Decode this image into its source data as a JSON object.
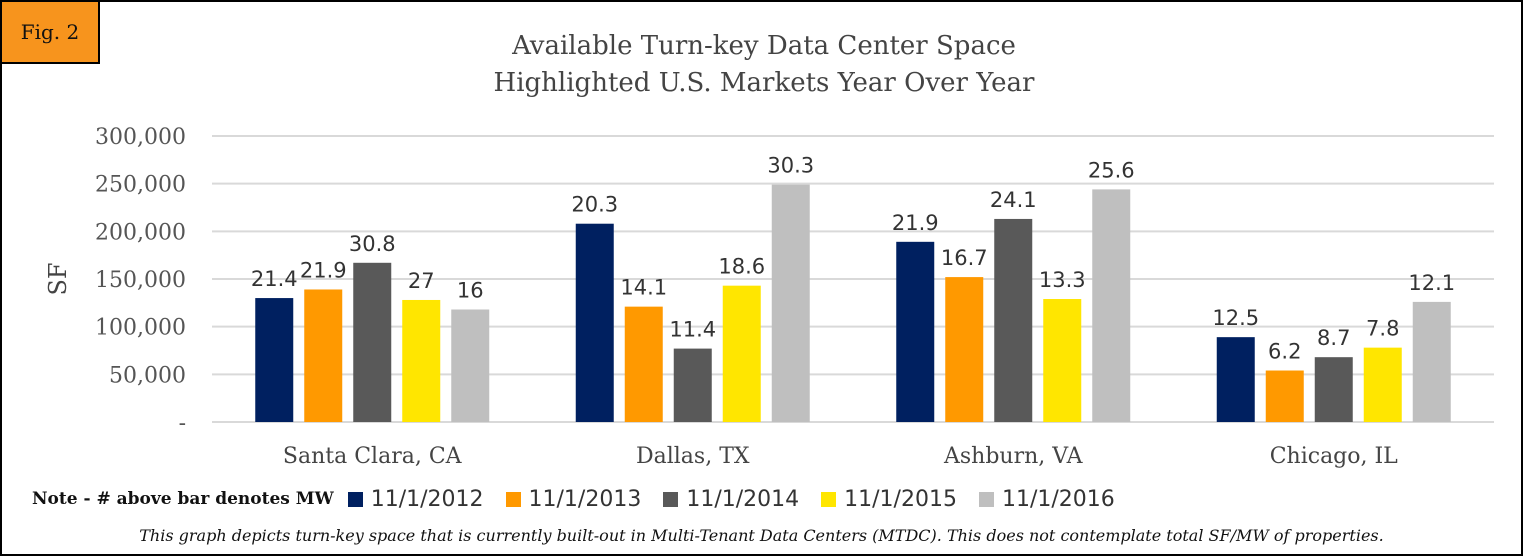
{
  "figure_label": "Fig. 2",
  "note": "Note - # above bar denotes MW",
  "footnote": "This graph depicts turn-key space that is currently built-out in Multi-Tenant Data Centers (MTDC). This does not contemplate total SF/MW of properties.",
  "chart_data": {
    "type": "bar",
    "title": "Available Turn-key Data Center Space",
    "subtitle": "Highlighted U.S. Markets Year Over Year",
    "ylabel": "SF",
    "xlabel": "",
    "ylim": [
      0,
      300000
    ],
    "yticks": [
      0,
      50000,
      100000,
      150000,
      200000,
      250000,
      300000
    ],
    "ytick_labels": [
      "-",
      "50,000",
      "100,000",
      "150,000",
      "200,000",
      "250,000",
      "300,000"
    ],
    "grid": true,
    "legend_position": "bottom",
    "categories": [
      "Santa Clara, CA",
      "Dallas, TX",
      "Ashburn, VA",
      "Chicago, IL"
    ],
    "series": [
      {
        "name": "11/1/2012",
        "color": "#002060",
        "values": [
          130000,
          208000,
          189000,
          89000
        ],
        "labels": [
          "21.4",
          "20.3",
          "21.9",
          "12.5"
        ]
      },
      {
        "name": "11/1/2013",
        "color": "#ff9900",
        "values": [
          139000,
          121000,
          152000,
          54000
        ],
        "labels": [
          "21.9",
          "14.1",
          "16.7",
          "6.2"
        ]
      },
      {
        "name": "11/1/2014",
        "color": "#595959",
        "values": [
          167000,
          77000,
          213000,
          68000
        ],
        "labels": [
          "30.8",
          "11.4",
          "24.1",
          "8.7"
        ]
      },
      {
        "name": "11/1/2015",
        "color": "#ffe600",
        "values": [
          128000,
          143000,
          129000,
          78000
        ],
        "labels": [
          "27",
          "18.6",
          "13.3",
          "7.8"
        ]
      },
      {
        "name": "11/1/2016",
        "color": "#bfbfbf",
        "values": [
          118000,
          249000,
          244000,
          126000
        ],
        "labels": [
          "16",
          "30.3",
          "25.6",
          "12.1"
        ]
      }
    ]
  }
}
